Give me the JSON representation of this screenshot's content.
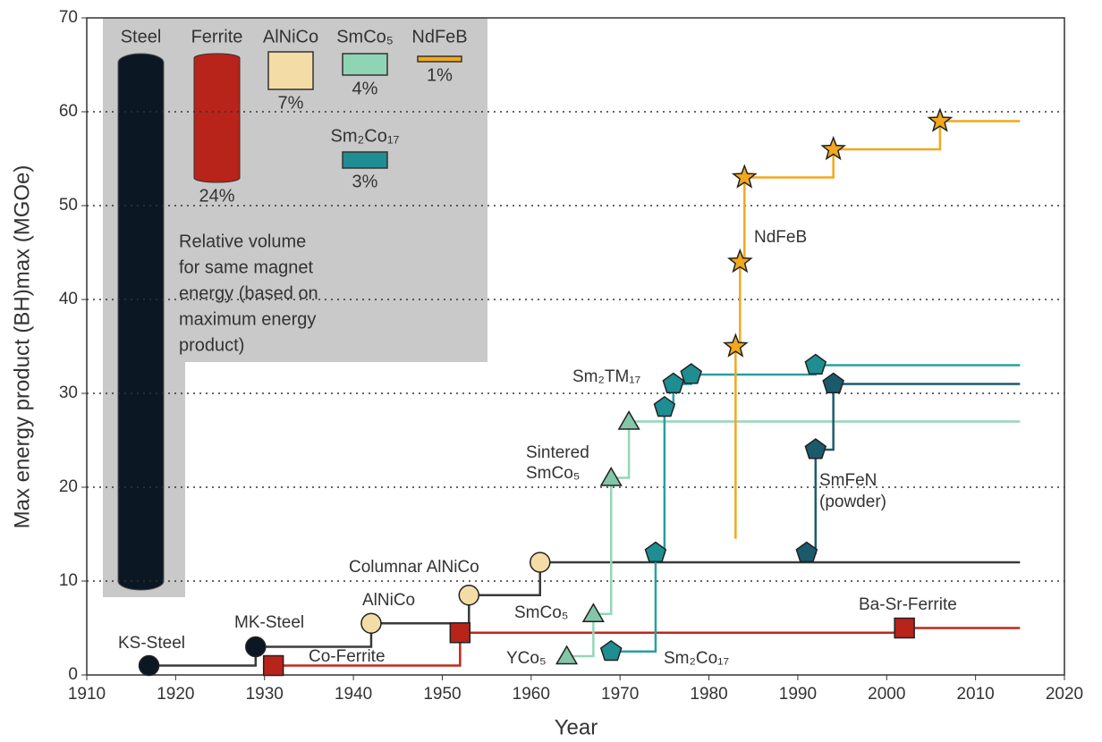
{
  "chart_data": {
    "type": "step",
    "xlabel": "Year",
    "ylabel": "Max energy product (BH)max (MGOe)",
    "xlim": [
      1910,
      2020
    ],
    "xticks": [
      1910,
      1920,
      1930,
      1940,
      1950,
      1960,
      1970,
      1980,
      1990,
      2000,
      2010,
      2020
    ],
    "ylim": [
      0,
      70
    ],
    "yticks": [
      0,
      10,
      20,
      30,
      40,
      50,
      60,
      70
    ],
    "grid": true,
    "series": [
      {
        "color": "#3a3a3a",
        "marker": "circle",
        "x": [
          1917,
          1929,
          1942,
          1953,
          1961
        ],
        "values": [
          1,
          3,
          5.5,
          8.5,
          12
        ],
        "end_x": 2015,
        "point_colors": [
          "#0b1722",
          "#0b1722",
          "#f4dca6",
          "#f4dca6",
          "#f4dca6"
        ]
      },
      {
        "color": "#c0281c",
        "marker": "square",
        "x": [
          1931,
          1952,
          2002
        ],
        "values": [
          1,
          4.5,
          5
        ],
        "end_x": 2015,
        "point_colors": [
          "#b8231a",
          "#b8231a",
          "#b8231a"
        ]
      },
      {
        "color": "#94d6b8",
        "marker": "triangle",
        "x": [
          1964,
          1967,
          1969,
          1971
        ],
        "values": [
          2,
          6.5,
          21,
          27
        ],
        "end_x": 2015,
        "point_colors": [
          "#84c7a8",
          "#84c7a8",
          "#84c7a8",
          "#84c7a8"
        ]
      },
      {
        "color": "#2a9fa3",
        "marker": "pentagon",
        "x": [
          1969,
          1974,
          1975,
          1976,
          1978,
          1992
        ],
        "values": [
          2.5,
          13,
          28.5,
          31,
          32,
          33
        ],
        "end_x": 2015,
        "point_colors": [
          "#1e8e92",
          "#1e8e92",
          "#1e8e92",
          "#1e8e92",
          "#1e8e92",
          "#1e8e92"
        ]
      },
      {
        "color": "#1d5c6e",
        "marker": "pentagon",
        "x": [
          1991,
          1992,
          1994
        ],
        "values": [
          13,
          24,
          31
        ],
        "end_x": 2015,
        "point_colors": [
          "#1a5a6c",
          "#1a5a6c",
          "#1a5a6c"
        ]
      },
      {
        "color": "#f2a81c",
        "marker": "star",
        "x": [
          1983,
          1983.5,
          1984,
          1994,
          2006
        ],
        "values": [
          35,
          44,
          53,
          56,
          59
        ],
        "start_value": 14.5,
        "end_x": 2015,
        "point_colors": [
          "#f2a81c",
          "#f2a81c",
          "#f2a81c",
          "#f2a81c",
          "#f2a81c"
        ]
      }
    ],
    "annotations": [
      "KS-Steel",
      "MK-Steel",
      "Co-Ferrite",
      "AlNiCo",
      "Columnar AlNiCo",
      "SmCo₅",
      "YCo₅",
      "Sm₂Co₁₇",
      "Ba-Sr-Ferrite",
      "Sintered",
      "SmCo₅",
      "Sm₂TM₁₇",
      "NdFeB",
      "SmFeN",
      "(powder)"
    ],
    "inset": {
      "text_lines": [
        "Relative volume",
        "for same magnet",
        "energy (based on",
        "maximum energy",
        "product)"
      ],
      "items": [
        {
          "name": "Steel",
          "color": "#0b1722"
        },
        {
          "name": "Ferrite",
          "value": 24,
          "value_label": "24%",
          "color": "#b8231a"
        },
        {
          "name": "AlNiCo",
          "value": 7,
          "value_label": "7%",
          "color": "#f4dca6"
        },
        {
          "name": "SmCo₅",
          "value": 4,
          "value_label": "4%",
          "color": "#8fd4b4"
        },
        {
          "name": "NdFeB",
          "value": 1,
          "value_label": "1%",
          "color": "#f2a81c"
        },
        {
          "name": "Sm₂Co₁₇",
          "value": 3,
          "value_label": "3%",
          "color": "#1e8e92"
        }
      ]
    }
  }
}
